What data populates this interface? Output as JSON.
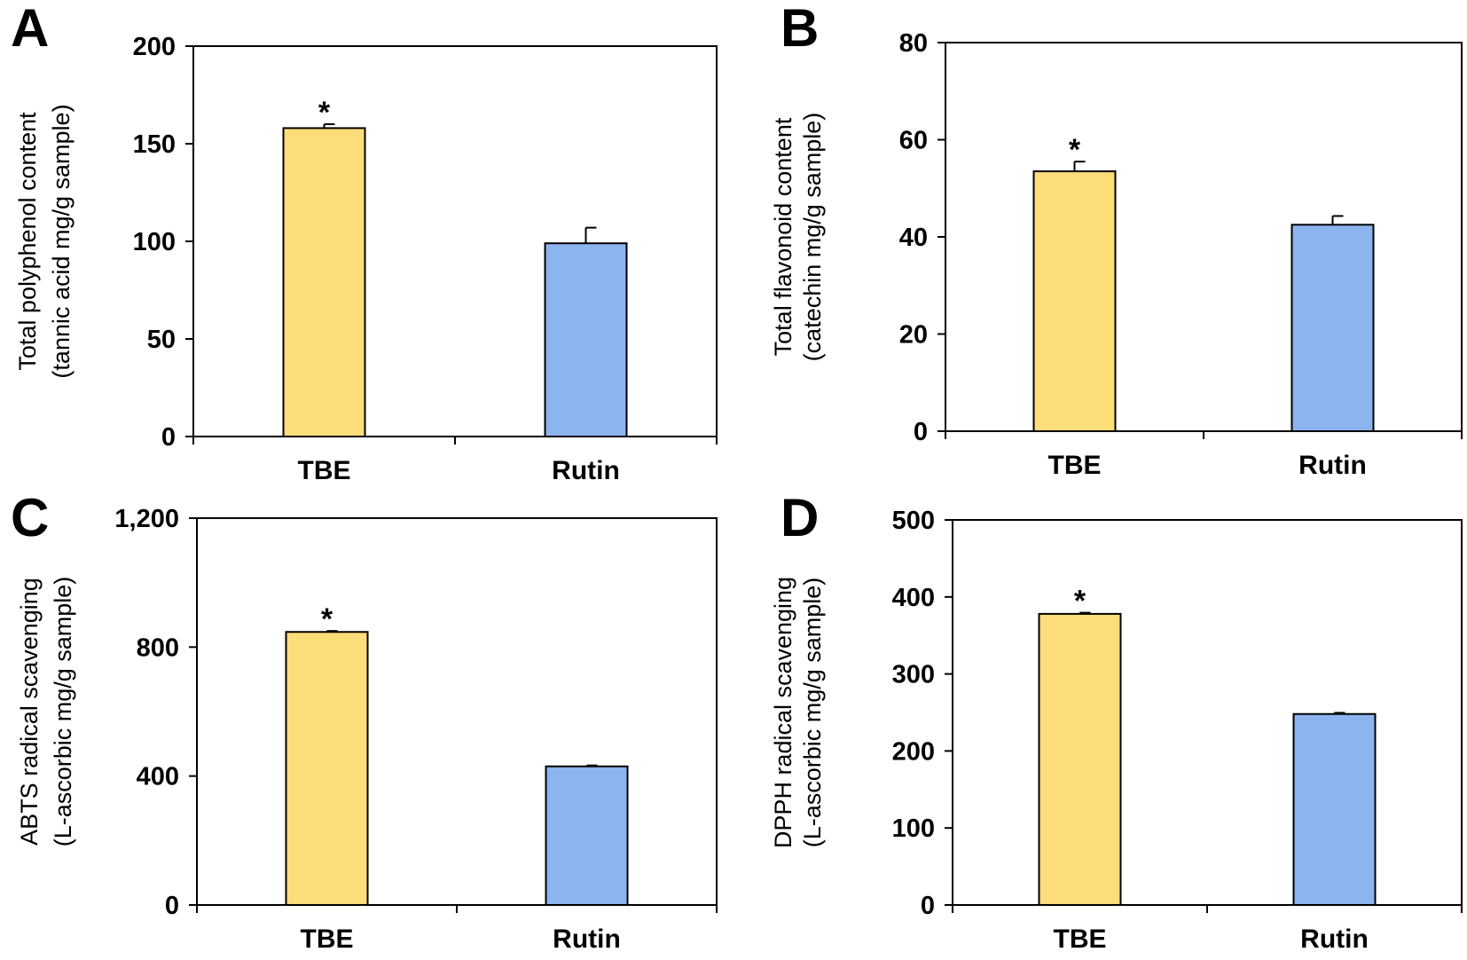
{
  "colors": {
    "TBE": "#FDDC7A",
    "Rutin": "#8CB4EE",
    "outline": "#000000"
  },
  "chart_data": [
    {
      "panel": "A",
      "type": "bar",
      "categories": [
        "TBE",
        "Rutin"
      ],
      "values": [
        158,
        99
      ],
      "errors": [
        2,
        8
      ],
      "significance": [
        "*",
        ""
      ],
      "ylabel_lines": [
        "Total polyphenol content",
        "(tannic acid mg/g sample)"
      ],
      "ylim": [
        0,
        200
      ],
      "yticks": [
        0,
        50,
        100,
        150,
        200
      ],
      "ytick_labels": [
        "0",
        "50",
        "100",
        "150",
        "200"
      ],
      "grid": false
    },
    {
      "panel": "B",
      "type": "bar",
      "categories": [
        "TBE",
        "Rutin"
      ],
      "values": [
        53.5,
        42.5
      ],
      "errors": [
        2,
        1.8
      ],
      "significance": [
        "*",
        ""
      ],
      "ylabel_lines": [
        "Total flavonoid content",
        "(catechin mg/g sample)"
      ],
      "ylim": [
        0,
        80
      ],
      "yticks": [
        0,
        20,
        40,
        60,
        80
      ],
      "ytick_labels": [
        "0",
        "20",
        "40",
        "60",
        "80"
      ],
      "grid": false
    },
    {
      "panel": "C",
      "type": "bar",
      "categories": [
        "TBE",
        "Rutin"
      ],
      "values": [
        847,
        430
      ],
      "errors": [
        3,
        3
      ],
      "significance": [
        "*",
        ""
      ],
      "ylabel_lines": [
        "ABTS radical scavenging",
        "(L-ascorbic mg/g sample)"
      ],
      "ylim": [
        0,
        1200
      ],
      "yticks": [
        0,
        400,
        800,
        1200
      ],
      "ytick_labels": [
        "0",
        "400",
        "800",
        "1,200"
      ],
      "grid": false
    },
    {
      "panel": "D",
      "type": "bar",
      "categories": [
        "TBE",
        "Rutin"
      ],
      "values": [
        378,
        248
      ],
      "errors": [
        1.5,
        1.5
      ],
      "significance": [
        "*",
        ""
      ],
      "ylabel_lines": [
        "DPPH radical scavenging",
        "(L-ascorbic mg/g sample)"
      ],
      "ylim": [
        0,
        500
      ],
      "yticks": [
        0,
        100,
        200,
        300,
        400,
        500
      ],
      "ytick_labels": [
        "0",
        "100",
        "200",
        "300",
        "400",
        "500"
      ],
      "grid": false
    }
  ]
}
